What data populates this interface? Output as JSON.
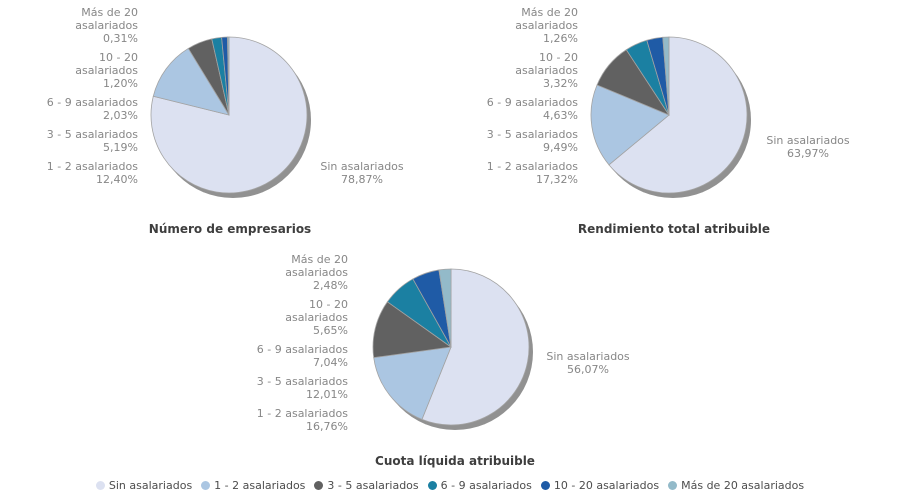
{
  "page": {
    "background": "#ffffff"
  },
  "categories": [
    {
      "name": "Sin asalariados",
      "color": "#dce1f1"
    },
    {
      "name": "1 - 2 asalariados",
      "color": "#abc6e2"
    },
    {
      "name": "3 - 5 asalariados",
      "color": "#616161"
    },
    {
      "name": "6 - 9 asalariados",
      "color": "#1b80a2"
    },
    {
      "name": "10 - 20 asalariados",
      "color": "#1f5ba6"
    },
    {
      "name": "Más de 20 asalariados",
      "color": "#93bac9"
    }
  ],
  "pie": {
    "border_color": "#a3a3a3",
    "shadow_color": "#919191",
    "start_angle_deg": 0,
    "direction": "clockwise"
  },
  "chart_data": [
    {
      "type": "pie",
      "title": "Número de empresarios",
      "labels": [
        "Sin asalariados",
        "1 - 2 asalariados",
        "3 - 5 asalariados",
        "6 - 9 asalariados",
        "10 - 20 asalariados",
        "Más de 20 asalariados"
      ],
      "values": [
        78.87,
        12.4,
        5.19,
        2.03,
        1.2,
        0.31
      ],
      "display_values": [
        "78,87%",
        "12,40%",
        "5,19%",
        "2,03%",
        "1,20%",
        "0,31%"
      ],
      "legend_position": "none"
    },
    {
      "type": "pie",
      "title": "Rendimiento total atribuible",
      "labels": [
        "Sin asalariados",
        "1 - 2 asalariados",
        "3 - 5 asalariados",
        "6 - 9 asalariados",
        "10 - 20 asalariados",
        "Más de 20 asalariados"
      ],
      "values": [
        63.97,
        17.32,
        9.49,
        4.63,
        3.32,
        1.26
      ],
      "display_values": [
        "63,97%",
        "17,32%",
        "9,49%",
        "4,63%",
        "3,32%",
        "1,26%"
      ],
      "legend_position": "none"
    },
    {
      "type": "pie",
      "title": "Cuota líquida atribuible",
      "labels": [
        "Sin asalariados",
        "1 - 2 asalariados",
        "3 - 5 asalariados",
        "6 - 9 asalariados",
        "10 - 20 asalariados",
        "Más de 20 asalariados"
      ],
      "values": [
        56.07,
        16.76,
        12.01,
        7.04,
        5.65,
        2.48
      ],
      "display_values": [
        "56,07%",
        "16,76%",
        "12,01%",
        "7,04%",
        "5,65%",
        "2,48%"
      ],
      "legend_position": "none"
    }
  ],
  "legend": {
    "items": [
      "Sin asalariados",
      "1 - 2 asalariados",
      "3 - 5 asalariados",
      "6 - 9 asalariados",
      "10 - 20 asalariados",
      "Más de 20 asalariados"
    ]
  }
}
